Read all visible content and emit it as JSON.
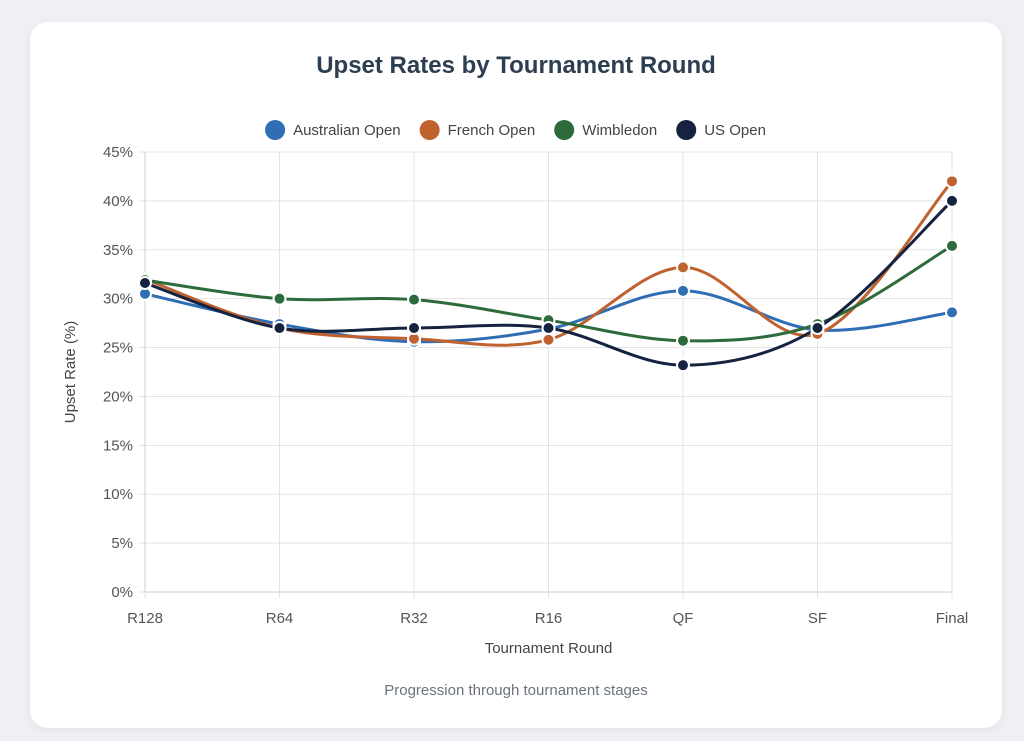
{
  "chart_data": {
    "type": "line",
    "title": "Upset Rates by Tournament Round",
    "subtitle": "Progression through tournament stages",
    "xlabel": "Tournament Round",
    "ylabel": "Upset Rate (%)",
    "categories": [
      "R128",
      "R64",
      "R32",
      "R16",
      "QF",
      "SF",
      "Final"
    ],
    "ylim": [
      0,
      45
    ],
    "y_ticks": [
      0,
      5,
      10,
      15,
      20,
      25,
      30,
      35,
      40,
      45
    ],
    "y_tick_suffix": "%",
    "grid": true,
    "legend_position": "top",
    "series": [
      {
        "name": "Australian Open",
        "color": "#2f6db5",
        "values": [
          30.5,
          27.4,
          25.6,
          26.9,
          30.8,
          26.8,
          28.6
        ]
      },
      {
        "name": "French Open",
        "color": "#c0622f",
        "values": [
          32.0,
          27.0,
          25.9,
          25.8,
          33.2,
          26.4,
          42.0
        ]
      },
      {
        "name": "Wimbledon",
        "color": "#2e6b3c",
        "values": [
          31.9,
          30.0,
          29.9,
          27.8,
          25.7,
          27.4,
          35.4
        ]
      },
      {
        "name": "US Open",
        "color": "#152340",
        "values": [
          31.6,
          27.0,
          27.0,
          27.0,
          23.2,
          27.0,
          40.0
        ]
      }
    ]
  }
}
